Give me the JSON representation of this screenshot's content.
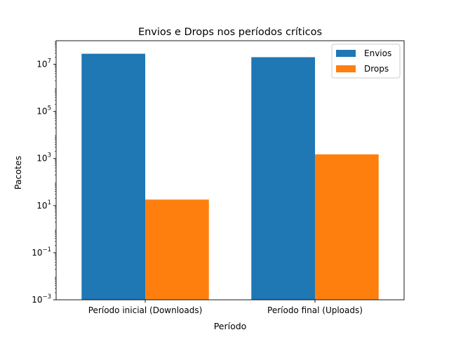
{
  "chart_data": {
    "type": "bar",
    "title": "Envios e Drops nos períodos críticos",
    "xlabel": "Período",
    "ylabel": "Pacotes",
    "yscale": "log",
    "ylim": [
      0.001,
      100000000
    ],
    "yticks": [
      {
        "value": 0.001,
        "base": "10",
        "exp": "−3"
      },
      {
        "value": 0.1,
        "base": "10",
        "exp": "−1"
      },
      {
        "value": 10,
        "base": "10",
        "exp": "1"
      },
      {
        "value": 1000,
        "base": "10",
        "exp": "3"
      },
      {
        "value": 100000,
        "base": "10",
        "exp": "5"
      },
      {
        "value": 10000000,
        "base": "10",
        "exp": "7"
      }
    ],
    "categories": [
      "Período inicial (Downloads)",
      "Período final (Uploads)"
    ],
    "series": [
      {
        "name": "Envios",
        "color": "#1f77b4",
        "values": [
          28000000,
          20000000
        ]
      },
      {
        "name": "Drops",
        "color": "#ff7f0e",
        "values": [
          18,
          1500
        ]
      }
    ],
    "legend": "top-right",
    "grid": false
  }
}
